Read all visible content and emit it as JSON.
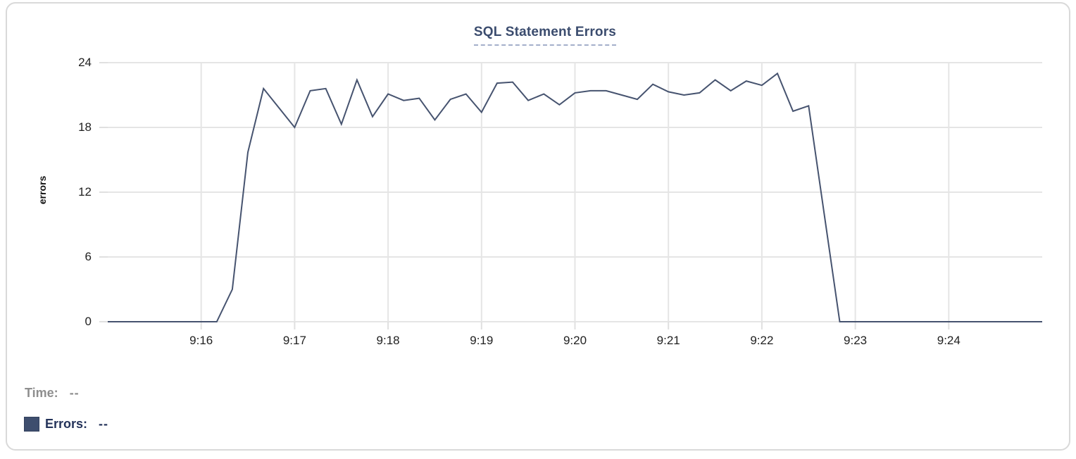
{
  "chart": {
    "title": "SQL Statement Errors",
    "ylabel": "errors"
  },
  "readout": {
    "time_label": "Time:",
    "time_value": "--",
    "errors_label": "Errors:",
    "errors_value": "--"
  },
  "colors": {
    "line": "#46536f",
    "swatch": "#3e4e6e",
    "grid": "#e5e5e5",
    "tick": "#e0e0e0",
    "axis_text": "#1f1f1f",
    "title": "#3b4c6e",
    "title_underline": "#a3afca",
    "time_label": "#8e8e8e",
    "errors_label": "#24335a",
    "card_border": "#d9d9d9"
  },
  "chart_data": {
    "type": "line",
    "title": "SQL Statement Errors",
    "xlabel": "",
    "ylabel": "errors",
    "series_name": "Errors",
    "legend_position": "none",
    "grid": true,
    "ylim": [
      0,
      24
    ],
    "y_ticks": [
      0,
      6,
      12,
      18,
      24
    ],
    "x_tick_labels": [
      "9:16",
      "9:17",
      "9:18",
      "9:19",
      "9:20",
      "9:21",
      "9:22",
      "9:23",
      "9:24"
    ],
    "x_start": "9:15:00",
    "x_end": "9:25:00",
    "sample_interval_seconds": 10,
    "times": [
      "9:15:00",
      "9:15:10",
      "9:15:20",
      "9:15:30",
      "9:15:40",
      "9:15:50",
      "9:16:00",
      "9:16:10",
      "9:16:20",
      "9:16:30",
      "9:16:40",
      "9:16:50",
      "9:17:00",
      "9:17:10",
      "9:17:20",
      "9:17:30",
      "9:17:40",
      "9:17:50",
      "9:18:00",
      "9:18:10",
      "9:18:20",
      "9:18:30",
      "9:18:40",
      "9:18:50",
      "9:19:00",
      "9:19:10",
      "9:19:20",
      "9:19:30",
      "9:19:40",
      "9:19:50",
      "9:20:00",
      "9:20:10",
      "9:20:20",
      "9:20:30",
      "9:20:40",
      "9:20:50",
      "9:21:00",
      "9:21:10",
      "9:21:20",
      "9:21:30",
      "9:21:40",
      "9:21:50",
      "9:22:00",
      "9:22:10",
      "9:22:20",
      "9:22:30",
      "9:22:40",
      "9:22:50",
      "9:23:00",
      "9:23:10",
      "9:23:20",
      "9:23:30",
      "9:23:40",
      "9:23:50",
      "9:24:00",
      "9:24:10",
      "9:24:20",
      "9:24:30",
      "9:24:40",
      "9:24:50",
      "9:25:00"
    ],
    "values": [
      0,
      0,
      0,
      0,
      0,
      0,
      0,
      0,
      3,
      15.7,
      21.6,
      19.8,
      18,
      21.4,
      21.6,
      18.3,
      22.4,
      19,
      21.1,
      20.5,
      20.7,
      18.7,
      20.6,
      21.1,
      19.4,
      22.1,
      22.2,
      20.5,
      21.1,
      20.1,
      21.2,
      21.4,
      21.4,
      21,
      20.6,
      22,
      21.3,
      21,
      21.2,
      22.4,
      21.4,
      22.3,
      21.9,
      23,
      19.5,
      20,
      10,
      0,
      0,
      0,
      0,
      0,
      0,
      0,
      0,
      0,
      0,
      0,
      0,
      0,
      0
    ]
  }
}
